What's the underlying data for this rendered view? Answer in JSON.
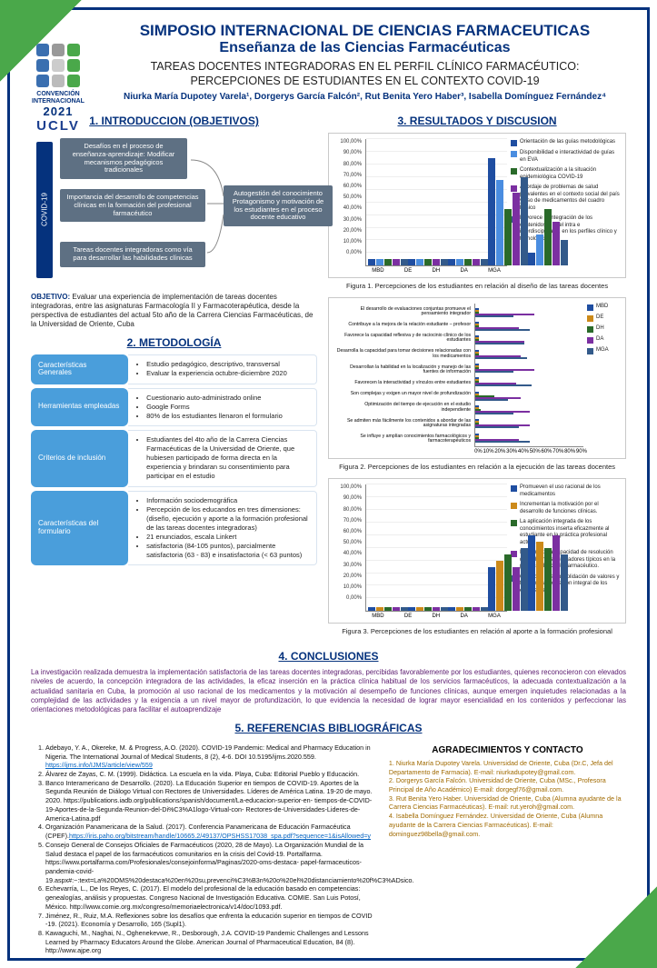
{
  "logo": {
    "cells": [
      "#3a6fb0",
      "#999999",
      "#4aa84a",
      "#3a6fb0",
      "#cccccc",
      "#4aa84a",
      "#3a6fb0",
      "#bbbbbb",
      "#4aa84a"
    ],
    "caption": "CONVENCIÓN INTERNACIONAL",
    "year": "2021",
    "uclv": "UCLV"
  },
  "header": {
    "main_title": "SIMPOSIO INTERNACIONAL DE CIENCIAS FARMACEUTICAS",
    "sub_title": "Enseñanza de las Ciencias Farmacéuticas",
    "study_title_1": "TAREAS DOCENTES INTEGRADORAS EN EL PERFIL CLÍNICO FARMACÉUTICO:",
    "study_title_2": "PERCEPCIONES DE ESTUDIANTES EN EL CONTEXTO COVID-19",
    "authors": "Niurka María Dupotey Varela¹, Dorgerys García Falcón², Rut Benita Yero Haber³, Isabella Domínguez Fernández⁴"
  },
  "sections": {
    "intro": "1. INTRODUCCION (OBJETIVOS)",
    "resultados": "3. RESULTADOS Y DISCUSION",
    "metodologia": "2. METODOLOGÍA",
    "conclusiones": "4. CONCLUSIONES",
    "referencias": "5. REFERENCIAS BIBLIOGRÁFICAS",
    "agradecimientos": "AGRADECIMIENTOS Y CONTACTO"
  },
  "intro": {
    "spine": "COVID-19",
    "box1": "Desafíos en el proceso de enseñanza-aprendizaje:\nModificar mecanismos pedagógicos tradicionales",
    "box2": "Importancia del desarrollo de competencias clínicas en la formación del profesional farmacéutico",
    "box3": "Tareas docentes integradoras como vía para desarrollar las habilidades clínicas",
    "box4": "Autogestión del conocimiento\nProtagonismo y motivación de los estudiantes en el proceso docente educativo",
    "objetivo_label": "OBJETIVO:",
    "objetivo_body": "Evaluar una experiencia de implementación de tareas docentes integradoras, entre las asignaturas Farmacología II y Farmacoterapéutica, desde la perspectiva de estudiantes del actual 5to año de la Carrera Ciencias Farmacéuticas, de la Universidad de Oriente, Cuba"
  },
  "metodologia": [
    {
      "label": "Características Generales",
      "items": [
        "Estudio pedagógico, descriptivo, transversal",
        "Evaluar la experiencia octubre-diciembre 2020"
      ]
    },
    {
      "label": "Herramientas empleadas",
      "items": [
        "Cuestionario auto-administrado online",
        "Google Forms",
        "80% de los estudiantes llenaron el formulario"
      ]
    },
    {
      "label": "Criterios de inclusión",
      "items": [
        "Estudiantes del 4to año de la Carrera Ciencias Farmacéuticas de la Universidad de Oriente, que hubiesen participado de forma directa en la experiencia y brindaran su consentimiento para participar en el estudio"
      ]
    },
    {
      "label": "Características del formulario",
      "items": [
        "Información sociodemográfica",
        "Percepción de los educandos en tres dimensiones: (diseño, ejecución y aporte a la formación profesional de las tareas docentes integradoras)",
        "21 enunciados, escala Linkert",
        "satisfactoria (84-105 puntos), parcialmente satisfactoria (63 - 83) e insatisfactoria (< 63 puntos)"
      ]
    }
  ],
  "figure1": {
    "caption": "Figura 1. Percepciones de los estudiantes en relación al diseño de las tareas docentes",
    "yticks": [
      "100,00%",
      "90,00%",
      "80,00%",
      "70,00%",
      "60,00%",
      "50,00%",
      "40,00%",
      "30,00%",
      "20,00%",
      "10,00%",
      "0,00%"
    ],
    "xticks": [
      "MBD",
      "DE",
      "DH",
      "DA",
      "MGA"
    ],
    "series_colors": [
      "#1f4ea1",
      "#4a8de0",
      "#2a6a2a",
      "#7b2fa1",
      "#335a8a"
    ],
    "groups": [
      [
        5,
        5,
        5,
        5,
        5
      ],
      [
        5,
        5,
        5,
        5,
        5
      ],
      [
        5,
        5,
        5,
        5,
        5
      ],
      [
        85,
        68,
        45,
        58,
        70
      ],
      [
        10,
        25,
        45,
        35,
        20
      ]
    ],
    "legend": [
      "Orientación de las guías metodológicas",
      "Disponibilidad e interactividad de guías en EVA",
      "Contextualización a la situación epidemiológica COVID-19",
      "Abordaje de problemas de salud prevalentes en el contexto social del país y uso de medicamentos del cuadro básico",
      "Favorece la integración de los contenidos a nivel intra e interdisciplinario, en los perfiles clínico y tecnológico."
    ]
  },
  "figure2": {
    "caption": "Figura 2. Percepciones de los estudiantes en relación a la ejecución de las tareas docentes",
    "rows": [
      "El desarrollo de evaluaciones conjuntas promueve el pensamiento integrador",
      "Contribuye a la mejora de la relación estudiante – profesor",
      "Favorece la capacidad reflexiva y de raciocinio clínico de los estudiantes",
      "Desarrolla la capacidad para tomar decisiones relacionadas con los medicamentos",
      "Desarrollan la habilidad en la localización y manejo de las fuentes de información",
      "Favorecen la interactividad y vínculos entre estudiantes",
      "Son complejas y exigen un mayor nivel de profundización",
      "Optimización del tiempo de ejecución en el estudio independiente",
      "Se admiten más fácilmente los contenidos a abordar de las asignaturas integradas",
      "Se influye y amplían conocimientos farmacológicos y farmacoterapéuticos"
    ],
    "xticks": [
      "0%",
      "10%",
      "20%",
      "30%",
      "40%",
      "50%",
      "60%",
      "70%",
      "80%",
      "90%"
    ],
    "series_colors": [
      "#1f4ea1",
      "#cc8a1a",
      "#2a6a2a",
      "#7b2fa1",
      "#335a8a"
    ],
    "legend": [
      "MBD",
      "DE",
      "DH",
      "DA",
      "MGA"
    ],
    "values": [
      [
        3,
        3,
        3,
        55,
        35
      ],
      [
        3,
        3,
        3,
        40,
        50
      ],
      [
        3,
        3,
        3,
        45,
        45
      ],
      [
        3,
        3,
        3,
        42,
        48
      ],
      [
        3,
        3,
        3,
        55,
        35
      ],
      [
        3,
        3,
        3,
        38,
        52
      ],
      [
        3,
        3,
        18,
        42,
        30
      ],
      [
        3,
        3,
        5,
        50,
        35
      ],
      [
        3,
        3,
        3,
        50,
        40
      ],
      [
        3,
        3,
        3,
        40,
        50
      ]
    ]
  },
  "figure3": {
    "caption": "Figura 3. Percepciones de los estudiantes en relación al aporte a la formación profesional",
    "yticks": [
      "100,00%",
      "90,00%",
      "80,00%",
      "70,00%",
      "60,00%",
      "50,00%",
      "40,00%",
      "30,00%",
      "20,00%",
      "10,00%",
      "0,00%"
    ],
    "xticks": [
      "MBD",
      "DE",
      "DH",
      "DA",
      "MGA"
    ],
    "series_colors": [
      "#1f4ea1",
      "#cc8a1a",
      "#2a6a2a",
      "#7b2fa1",
      "#335a8a"
    ],
    "groups": [
      [
        3,
        3,
        3,
        3,
        3
      ],
      [
        3,
        3,
        3,
        3,
        3
      ],
      [
        3,
        3,
        3,
        3,
        3
      ],
      [
        35,
        40,
        45,
        35,
        50
      ],
      [
        60,
        55,
        50,
        60,
        45
      ]
    ],
    "legend": [
      "Promueven el uso racional de los medicamentos",
      "Incrementan la motivación por el desarrollo de funciones clínicas.",
      "La aplicación integrada de los conocimientos inserta eficazmente al estudiante en la práctica profesional actual.",
      "Incrementa la capacidad de resolución de problemas integradores típicos en la práctica clínica del farmacéutico.",
      "Contribuir a la consolidación de valores y fortalece la formación integral de los estudiantes"
    ]
  },
  "conclusiones": "La investigación realizada demuestra la implementación satisfactoria de las tareas docentes integradoras, percibidas favorablemente por los estudiantes, quienes reconocieron con elevados niveles de acuerdo, la concepción integradora de las actividades, la eficaz inserción en la práctica clínica habitual de los servicios farmacéuticos, la adecuada contextualización a la actualidad sanitaria en Cuba, la promoción al uso racional de los medicamentos y la motivación al desempeño de funciones clínicas, aunque emergen inquietudes relacionadas a la complejidad de las actividades y la exigencia a un nivel mayor de profundización, lo que evidencia la necesidad de lograr mayor esencialidad en los contenidos y perfeccionar las orientaciones metodológicas para facilitar el autoaprendizaje",
  "referencias": [
    "Adebayo, Y. A., Okereke, M. & Progress, A.O. (2020). COVID-19 Pandemic: Medical and Pharmacy Education in Nigeria. The International Journal of Medical Students, 8 (2), 4-6. DOI 10.5195/ijms.2020.559. <a href='#'>https://ijms.info/IJMS/article/view/559</a>",
    "Álvarez de Zayas, C. M. (1999). Didáctica. La escuela en la vida. Playa, Cuba: Editorial Pueblo y Educación.",
    "Banco Interamericano de Desarrollo. (2020). La Educación Superior en tiempos de COVID-19. Aportes de la Segunda Reunión de Diálogo Virtual con Rectores de Universidades. Líderes de América Latina. 19-20 de mayo. 2020. https://publications.iadb.org/publications/spanish/document/La-educacion-superior-en- tiempos-de-COVID-19-Aportes-de-la-Segunda-Reunion-del-Di%C3%A1logo-Virtual-con- Rectores-de-Universidades-Lideres-de-America-Latina.pdf",
    "Organización Panamericana de la Salud. (2017). Conferencia Panamericana de Educación Farmacéutica (CPEF).<a href='#'>https://iris.paho.org/bitstream/handle/10665.2/49137/OPSHSS17038_spa.pdf?sequence=1&isAllowed=y</a>",
    "Consejo General de Consejos Oficiales de Farmacéuticos (2020, 28 de Mayo). La Organización Mundial de la Salud destaca el papel de los farmacéuticos comunitarios en la crisis del Covid-19. Portalfarma. https://www.portalfarma.com/Profesionales/consejoinforma/Paginas/2020-oms-destaca- papel-farmaceuticos-pandemia-covid-19.aspx#:~:text=La%20OMS%20destaca%20en%20su,prevenci%C3%B3n%20o%20el%20distanciamiento%20f%C3%ADsico.",
    "Echevarría, L., De los Reyes, C. (2017). El modelo del profesional de la educación basado en competencias: genealogías, análisis y propuestas. Congreso Nacional de Investigación Educativa. COMIE. San Luis Potosí, México. http://www.comie.org.mx/congreso/memoriaelectronica/v14/doc/1093.pdf.",
    "Jiménez, R., Ruiz, M.A. Reflexiones sobre los desafíos que enfrenta la educación superior en tiempos de COVID -19. (2021). Economía y Desarrollo, 165 (Supl1).",
    "Kawaguchi, M., Naghai, N., Oghenekevwe, R., Desborough, J.A. COVID-19 Pandemic Challenges and Lessons Learned by Pharmacy Educators Around the Globe. American Journal of Pharmaceutical Education, 84 (8). http://www.ajpe.org"
  ],
  "agradecimientos": [
    "1. Niurka María Dupotey Varela. Universidad de Oriente, Cuba (Dr.C, Jefa del Departamento de Farmacia). E-mail: niurkadupotey@gmail.com.",
    "2. Dorgerys García Falcón. Universidad de Oriente, Cuba (MSc., Profesora Principal de Año Académico) E-mail: dorgegf76@gmail.com.",
    "3. Rut Benita Yero Haber. Universidad de Oriente, Cuba (Alumna ayudante de la Carrera Ciencias Farmacéuticas). E-mail: rut.yeroh@gmail.com.",
    "4. Isabella Domínguez Fernández. Universidad de Oriente, Cuba (Alumna ayudante de la Carrera Ciencias Farmacéuticas). E-mail: dominguez98bella@gmail.com."
  ]
}
